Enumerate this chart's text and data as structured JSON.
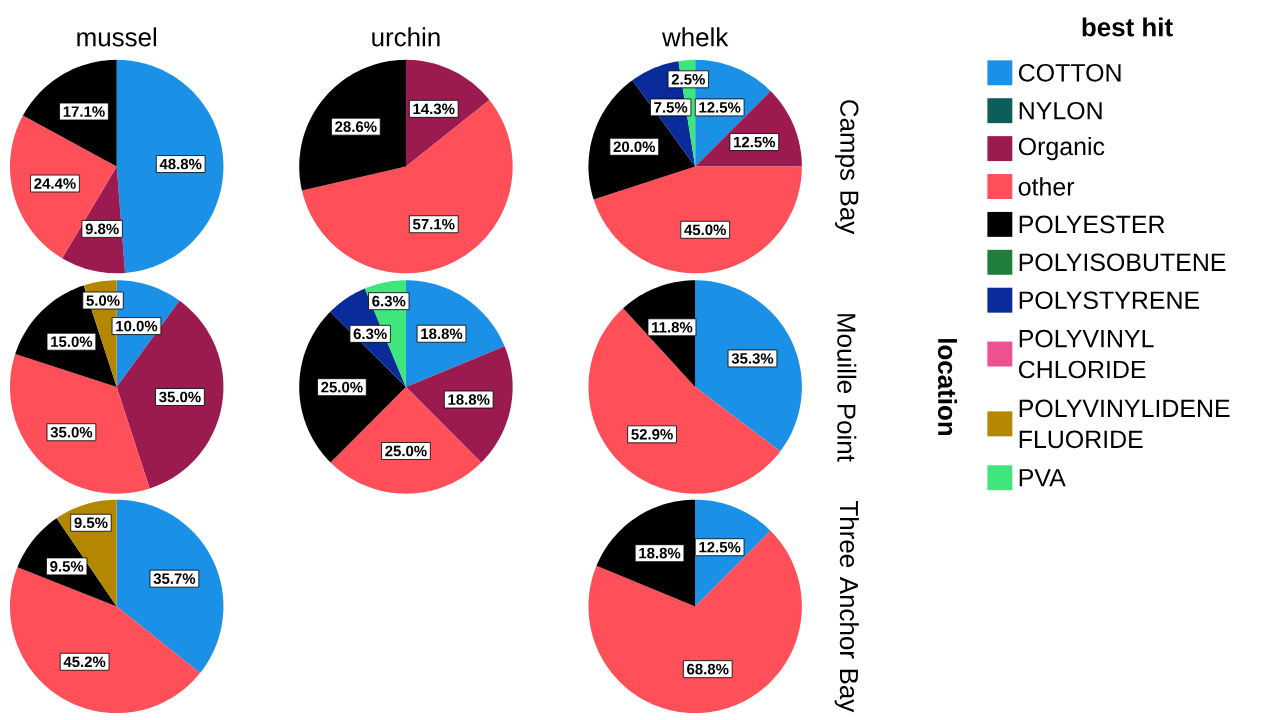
{
  "chart_data": [
    {
      "type": "pie",
      "title": "mussel",
      "colors": [
        "#1a91e6",
        "#0b5e5a",
        "#9b1a50",
        "#ff4f58",
        "#000000",
        "#1e7e3a",
        "#0a2b9a",
        "#ee5190",
        "#b38800",
        "#3ee67c"
      ],
      "values": [
        48.8,
        null,
        9.8,
        24.4,
        17.1,
        null,
        null,
        null,
        null,
        null
      ],
      "value_labels": [
        "48.8%",
        null,
        "9.8%",
        "24.4%",
        "17.1%",
        null,
        null,
        null,
        null,
        null
      ]
    },
    {
      "type": "pie",
      "title": "urchin",
      "colors": [
        "#1a91e6",
        "#0b5e5a",
        "#9b1a50",
        "#ff4f58",
        "#000000",
        "#1e7e3a",
        "#0a2b9a",
        "#ee5190",
        "#b38800",
        "#3ee67c"
      ],
      "values": [
        null,
        null,
        14.3,
        57.1,
        28.6,
        null,
        null,
        null,
        null,
        null
      ],
      "value_labels": [
        null,
        null,
        "14.3%",
        "57.1%",
        "28.6%",
        null,
        null,
        null,
        null,
        null
      ]
    },
    {
      "type": "pie",
      "title": "whelk",
      "y2label": "Camps Bay",
      "legend": "right",
      "legend_title": "best hit",
      "categories": [
        "COTTON",
        "NYLON",
        "Organic",
        "other",
        "POLYESTER",
        "POLYISOBUTENE",
        "POLYSTYRENE",
        "POLYVINYL CHLORIDE",
        "POLYVINYLIDENE FLUORIDE",
        "PVA"
      ],
      "colors": [
        "#1a91e6",
        "#0b5e5a",
        "#9b1a50",
        "#ff4f58",
        "#000000",
        "#1e7e3a",
        "#0a2b9a",
        "#ee5190",
        "#b38800",
        "#3ee67c"
      ],
      "values": [
        12.5,
        null,
        12.5,
        45.0,
        20.0,
        null,
        7.5,
        null,
        null,
        2.5
      ],
      "value_labels": [
        "12.5%",
        null,
        "12.5%",
        "45.0%",
        "20.0%",
        null,
        "7.5%",
        null,
        null,
        "2.5%"
      ]
    },
    {
      "type": "pie",
      "colors": [
        "#1a91e6",
        "#0b5e5a",
        "#9b1a50",
        "#ff4f58",
        "#000000",
        "#1e7e3a",
        "#0a2b9a",
        "#ee5190",
        "#b38800",
        "#3ee67c"
      ],
      "values": [
        10.0,
        null,
        35.0,
        35.0,
        15.0,
        null,
        null,
        null,
        5.0,
        null
      ],
      "value_labels": [
        "10.0%",
        null,
        "35.0%",
        "35.0%",
        "15.0%",
        null,
        null,
        null,
        "5.0%",
        null
      ]
    },
    {
      "type": "pie",
      "colors": [
        "#1a91e6",
        "#0b5e5a",
        "#9b1a50",
        "#ff4f58",
        "#000000",
        "#1e7e3a",
        "#0a2b9a",
        "#ee5190",
        "#b38800",
        "#3ee67c"
      ],
      "values": [
        18.8,
        null,
        18.8,
        25.0,
        25.0,
        null,
        6.3,
        null,
        null,
        6.3
      ],
      "value_labels": [
        "18.8%",
        null,
        "18.8%",
        "25.0%",
        "25.0%",
        null,
        "6.3%",
        null,
        null,
        "6.3%"
      ]
    },
    {
      "type": "pie",
      "y2label": "Mouille Point",
      "annotations": [
        "location"
      ],
      "colors": [
        "#1a91e6",
        "#0b5e5a",
        "#9b1a50",
        "#ff4f58",
        "#000000",
        "#1e7e3a",
        "#0a2b9a",
        "#ee5190",
        "#b38800",
        "#3ee67c"
      ],
      "values": [
        35.3,
        null,
        null,
        52.9,
        11.8,
        null,
        null,
        null,
        null,
        null
      ],
      "value_labels": [
        "35.3%",
        null,
        null,
        "52.9%",
        "11.8%",
        null,
        null,
        null,
        null,
        null
      ]
    },
    {
      "type": "pie",
      "colors": [
        "#1a91e6",
        "#0b5e5a",
        "#9b1a50",
        "#ff4f58",
        "#000000",
        "#1e7e3a",
        "#0a2b9a",
        "#ee5190",
        "#b38800",
        "#3ee67c"
      ],
      "values": [
        35.7,
        null,
        null,
        45.2,
        9.5,
        null,
        null,
        null,
        9.5,
        null
      ],
      "value_labels": [
        "35.7%",
        null,
        null,
        "45.2%",
        "9.5%",
        null,
        null,
        null,
        "9.5%",
        null
      ]
    },
    {
      "type": "pie",
      "y2label": "Three Anchor Bay",
      "colors": [
        "#1a91e6",
        "#0b5e5a",
        "#9b1a50",
        "#ff4f58",
        "#000000",
        "#1e7e3a",
        "#0a2b9a",
        "#ee5190",
        "#b38800",
        "#3ee67c"
      ],
      "values": [
        12.5,
        null,
        null,
        68.8,
        18.8,
        null,
        null,
        null,
        null,
        null
      ],
      "value_labels": [
        "12.5%",
        null,
        null,
        "68.8%",
        "18.8%",
        null,
        null,
        null,
        null,
        null
      ]
    }
  ]
}
